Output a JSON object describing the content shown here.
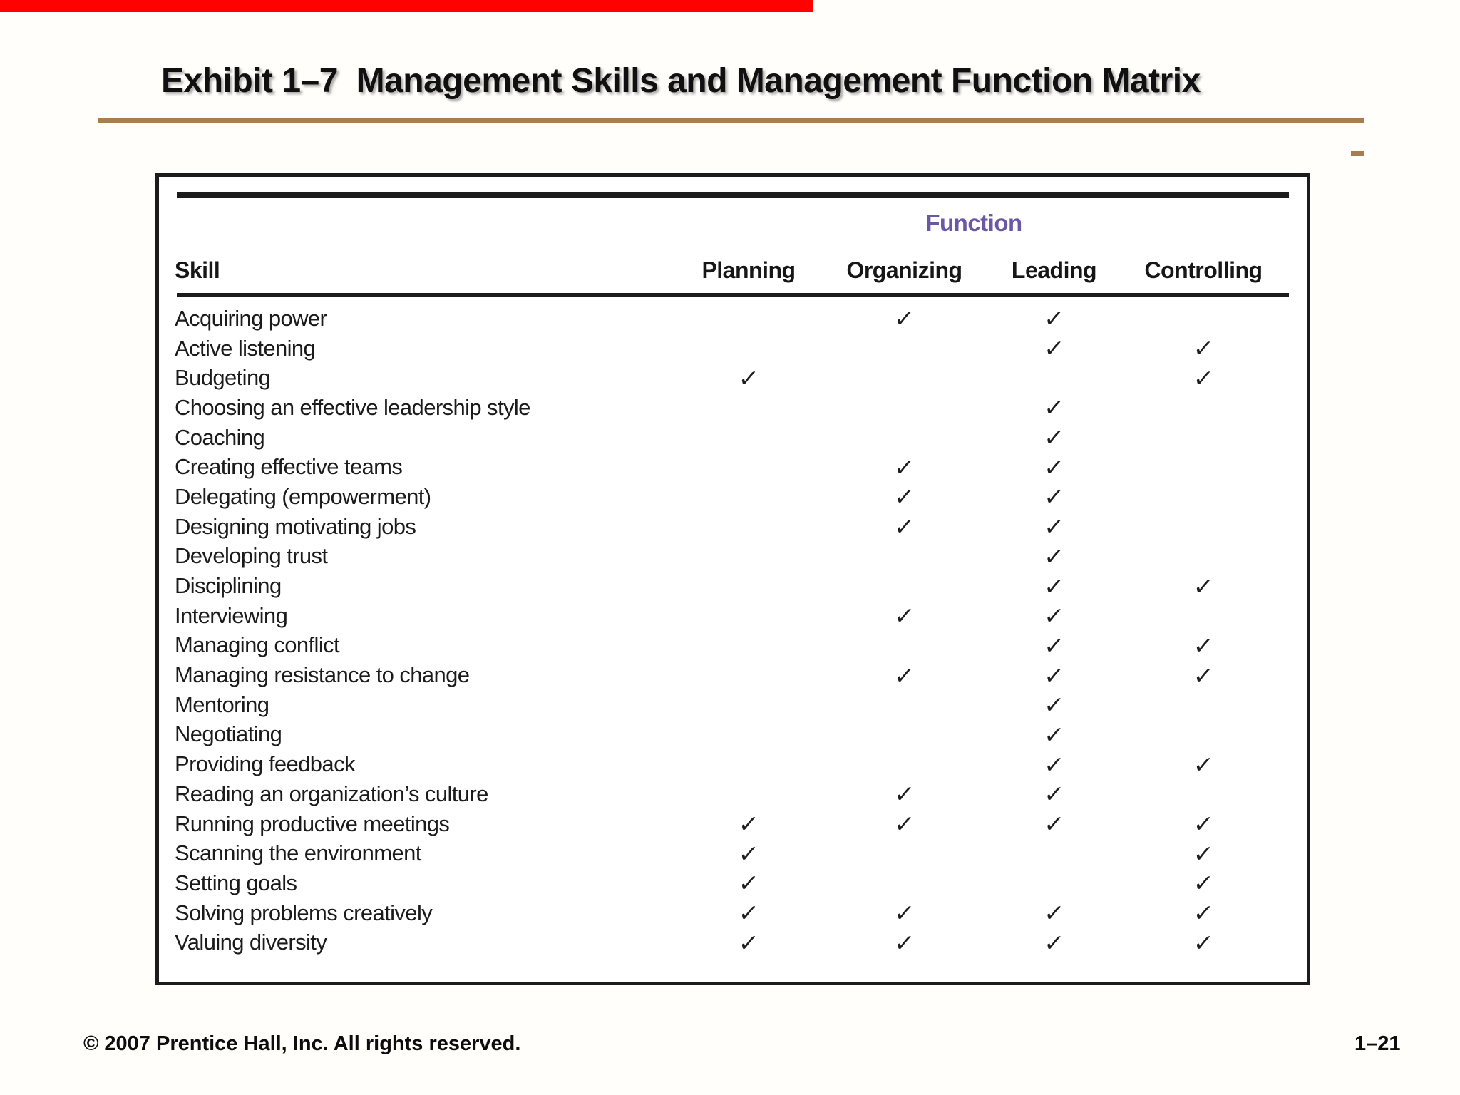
{
  "slide": {
    "title": "Exhibit 1–7  Management Skills and Management Function Matrix",
    "footer_left": "© 2007 Prentice Hall, Inc. All rights reserved.",
    "footer_right": "1–21",
    "colors": {
      "accent_rule": "#a87e50",
      "red_bar": "#fe0202",
      "function_purple": "#6a58a5",
      "ink": "#1c1c1c",
      "paper": "#fffefa"
    }
  },
  "table": {
    "function_group_label": "Function",
    "skill_header": "Skill",
    "columns": [
      "Planning",
      "Organizing",
      "Leading",
      "Controlling"
    ],
    "check_glyph": "✓",
    "rows": [
      {
        "skill": "Acquiring power",
        "checks": [
          false,
          true,
          true,
          false
        ]
      },
      {
        "skill": "Active listening",
        "checks": [
          false,
          false,
          true,
          true
        ]
      },
      {
        "skill": "Budgeting",
        "checks": [
          true,
          false,
          false,
          true
        ]
      },
      {
        "skill": "Choosing an effective leadership style",
        "checks": [
          false,
          false,
          true,
          false
        ]
      },
      {
        "skill": "Coaching",
        "checks": [
          false,
          false,
          true,
          false
        ]
      },
      {
        "skill": "Creating effective teams",
        "checks": [
          false,
          true,
          true,
          false
        ]
      },
      {
        "skill": "Delegating (empowerment)",
        "checks": [
          false,
          true,
          true,
          false
        ]
      },
      {
        "skill": "Designing motivating jobs",
        "checks": [
          false,
          true,
          true,
          false
        ]
      },
      {
        "skill": "Developing trust",
        "checks": [
          false,
          false,
          true,
          false
        ]
      },
      {
        "skill": "Disciplining",
        "checks": [
          false,
          false,
          true,
          true
        ]
      },
      {
        "skill": "Interviewing",
        "checks": [
          false,
          true,
          true,
          false
        ]
      },
      {
        "skill": "Managing conflict",
        "checks": [
          false,
          false,
          true,
          true
        ]
      },
      {
        "skill": "Managing resistance to change",
        "checks": [
          false,
          true,
          true,
          true
        ]
      },
      {
        "skill": "Mentoring",
        "checks": [
          false,
          false,
          true,
          false
        ]
      },
      {
        "skill": "Negotiating",
        "checks": [
          false,
          false,
          true,
          false
        ]
      },
      {
        "skill": "Providing feedback",
        "checks": [
          false,
          false,
          true,
          true
        ]
      },
      {
        "skill": "Reading an organization’s culture",
        "checks": [
          false,
          true,
          true,
          false
        ]
      },
      {
        "skill": "Running productive meetings",
        "checks": [
          true,
          true,
          true,
          true
        ]
      },
      {
        "skill": "Scanning the environment",
        "checks": [
          true,
          false,
          false,
          true
        ]
      },
      {
        "skill": "Setting goals",
        "checks": [
          true,
          false,
          false,
          true
        ]
      },
      {
        "skill": "Solving problems creatively",
        "checks": [
          true,
          true,
          true,
          true
        ]
      },
      {
        "skill": "Valuing diversity",
        "checks": [
          true,
          true,
          true,
          true
        ]
      }
    ]
  }
}
